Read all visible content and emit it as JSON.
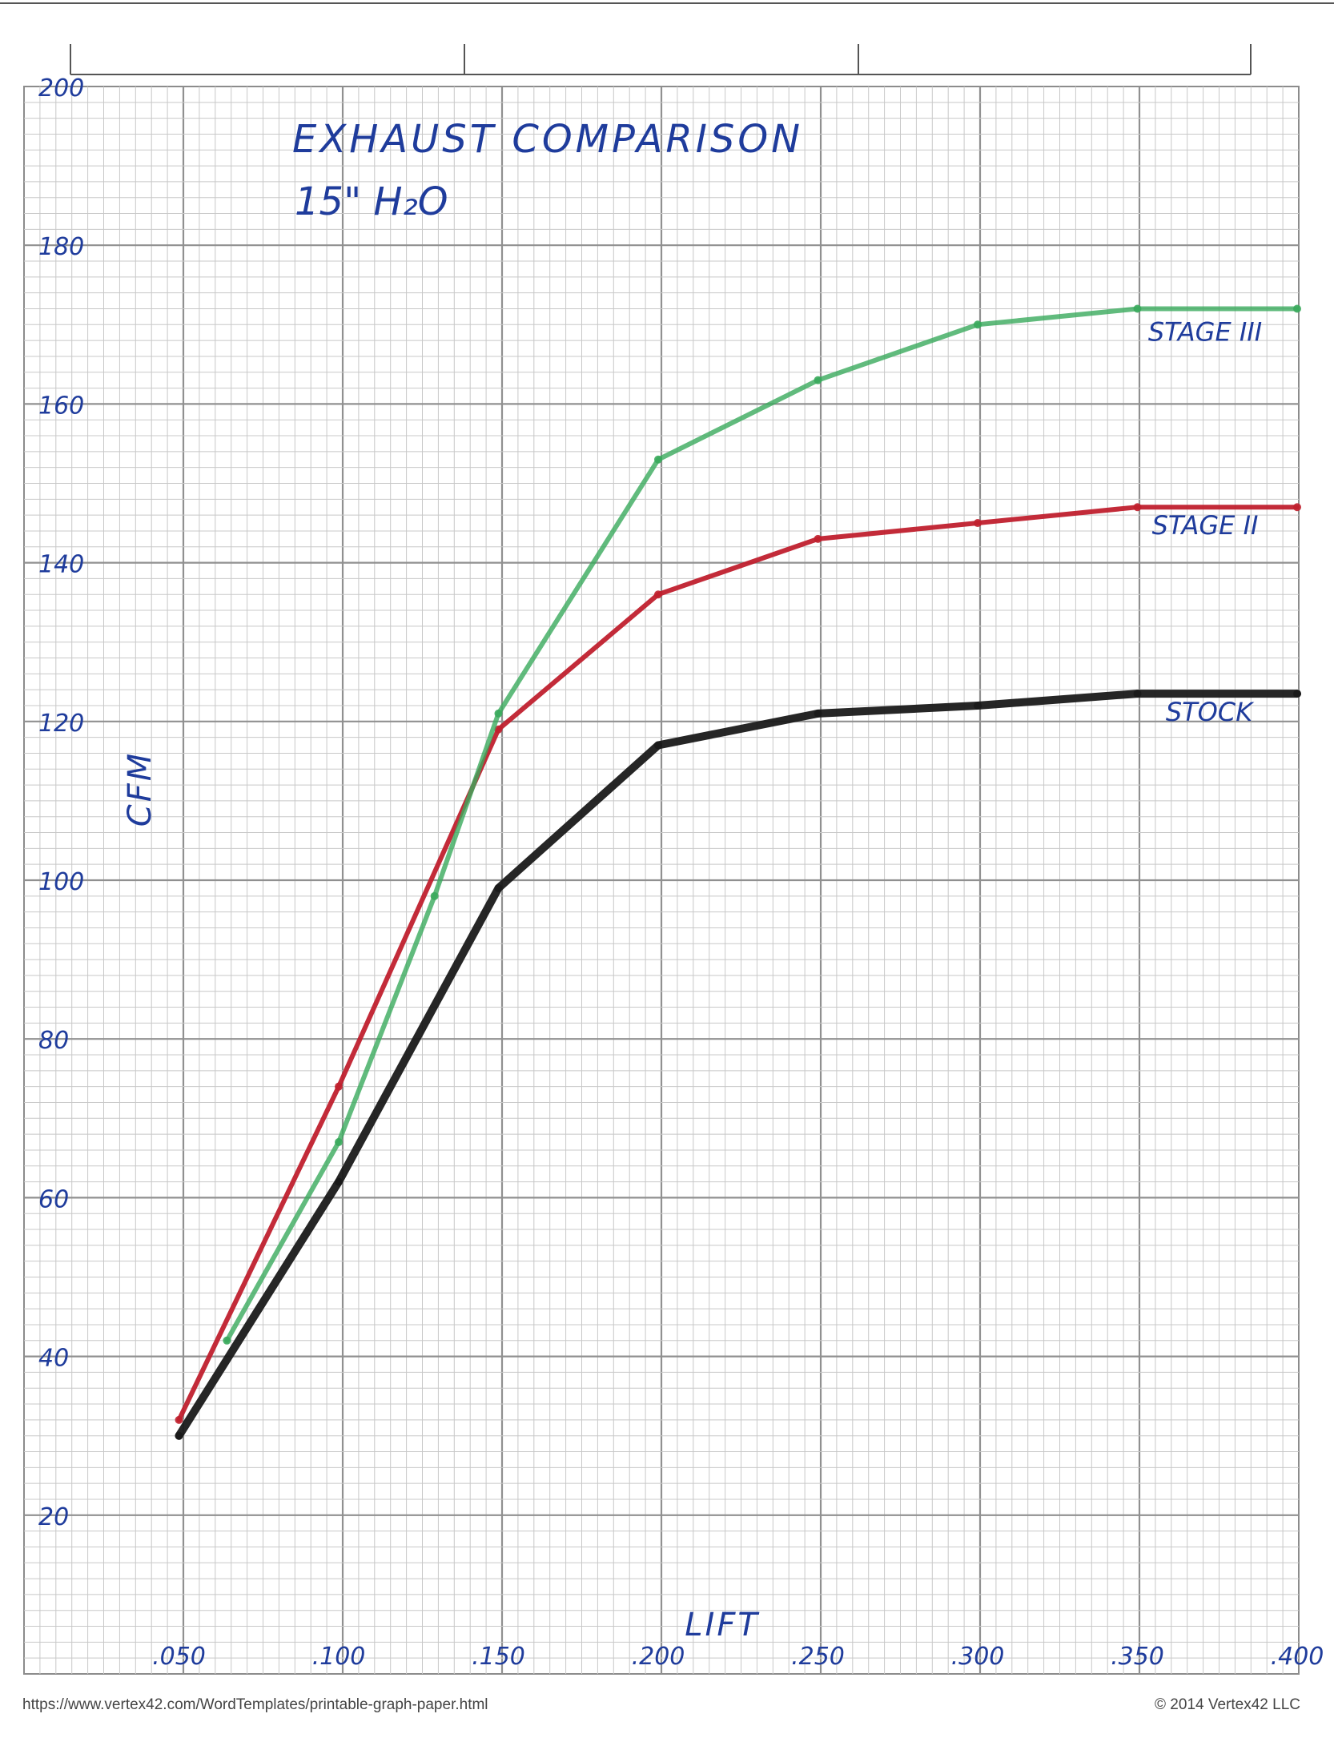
{
  "chart_data": {
    "type": "line",
    "title": "EXHAUST COMPARISON",
    "subtitle": "15\" H₂O",
    "xlabel": "LIFT",
    "ylabel": "CFM",
    "x": [
      0.05,
      0.1,
      0.15,
      0.2,
      0.25,
      0.3,
      0.35,
      0.4
    ],
    "x_tick_labels": [
      ".050",
      ".100",
      ".150",
      ".200",
      ".250",
      ".300",
      ".350",
      ".400"
    ],
    "y_ticks": [
      20,
      40,
      60,
      80,
      100,
      120,
      140,
      160,
      180,
      200
    ],
    "y_tick_labels": [
      "20",
      "40",
      "60",
      "80",
      "100",
      "120",
      "140",
      "160",
      "180",
      "200"
    ],
    "xlim": [
      0.0,
      0.4
    ],
    "ylim": [
      0,
      200
    ],
    "grid": true,
    "series": [
      {
        "name": "STOCK",
        "color": "#1a1a1a",
        "x": [
          0.05,
          0.1,
          0.15,
          0.2,
          0.25,
          0.3,
          0.35,
          0.4
        ],
        "values": [
          30,
          62,
          99,
          117,
          121,
          122,
          123.5,
          123.5
        ]
      },
      {
        "name": "STAGE II",
        "color": "#c0202e",
        "x": [
          0.05,
          0.1,
          0.15,
          0.2,
          0.25,
          0.3,
          0.35,
          0.4
        ],
        "values": [
          32,
          74,
          119,
          136,
          143,
          145,
          147,
          147
        ]
      },
      {
        "name": "STAGE III",
        "color": "#3aaa5c",
        "x": [
          0.065,
          0.1,
          0.13,
          0.15,
          0.2,
          0.25,
          0.3,
          0.35,
          0.4
        ],
        "values": [
          42,
          67,
          98,
          121,
          153,
          163,
          170,
          172,
          172
        ]
      }
    ]
  },
  "footer": {
    "url": "https://www.vertex42.com/WordTemplates/printable-graph-paper.html",
    "copyright": "© 2014 Vertex42 LLC"
  }
}
